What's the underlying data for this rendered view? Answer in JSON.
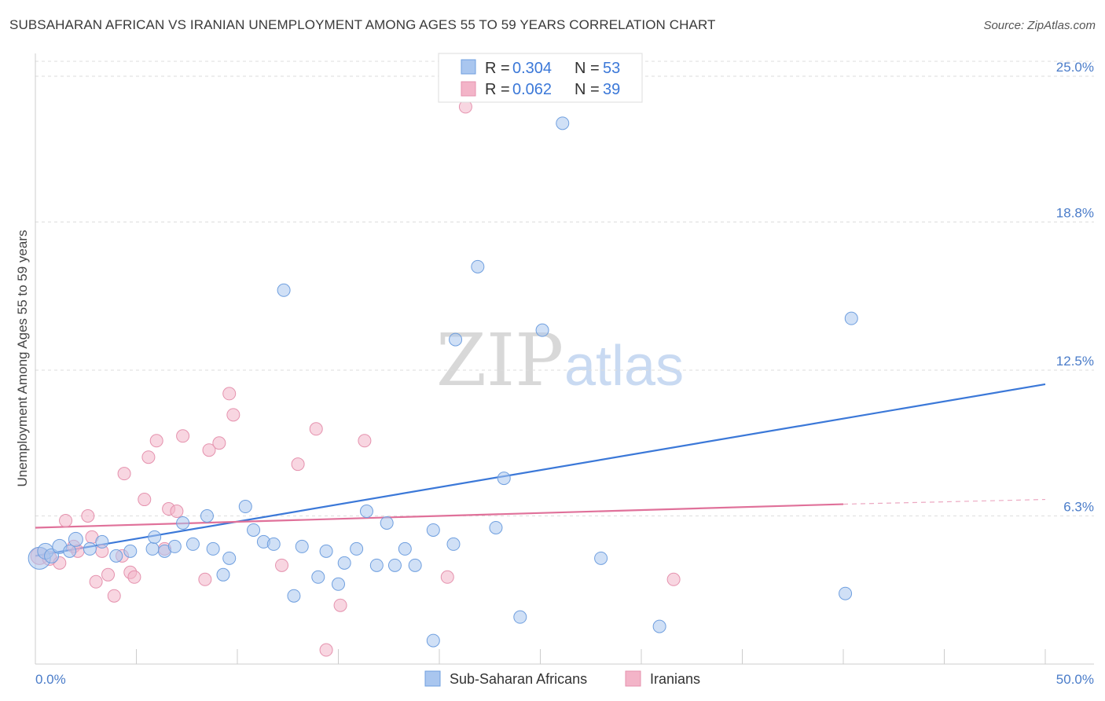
{
  "header": {
    "title": "SUBSAHARAN AFRICAN VS IRANIAN UNEMPLOYMENT AMONG AGES 55 TO 59 YEARS CORRELATION CHART",
    "source": "Source: ZipAtlas.com"
  },
  "watermark": {
    "zip": "ZIP",
    "atlas": "atlas"
  },
  "legend": {
    "blue": {
      "r_label": "R = ",
      "r_value": "0.304",
      "n_label": "N = ",
      "n_value": "53"
    },
    "pink": {
      "r_label": "R = ",
      "r_value": "0.062",
      "n_label": "N = ",
      "n_value": "39"
    }
  },
  "bottom_legend": {
    "blue": "Sub-Saharan Africans",
    "pink": "Iranians"
  },
  "colors": {
    "blue": "#3b78d8",
    "blue_fill": "#a9c6ef",
    "pink": "#e0719a",
    "pink_fill": "#f3b4c8",
    "grid": "#dddddd",
    "tick_label": "#4a7cc9"
  },
  "chart_data": {
    "type": "scatter",
    "title": "SUBSAHARAN AFRICAN VS IRANIAN UNEMPLOYMENT AMONG AGES 55 TO 59 YEARS CORRELATION CHART",
    "xlabel": "",
    "ylabel": "Unemployment Among Ages 55 to 59 years",
    "xlim": [
      0,
      50
    ],
    "ylim": [
      0,
      25
    ],
    "x_tick_labels": [
      "0.0%",
      "50.0%"
    ],
    "y_ticks": [
      6.3,
      12.5,
      18.8,
      25.0
    ],
    "y_tick_labels": [
      "6.3%",
      "12.5%",
      "18.8%",
      "25.0%"
    ],
    "series": [
      {
        "name": "Sub-Saharan Africans",
        "r": 0.304,
        "n": 53,
        "trend": {
          "x": [
            0,
            50
          ],
          "y": [
            4.6,
            11.9
          ]
        },
        "points": [
          [
            0.2,
            4.5,
            14
          ],
          [
            0.5,
            4.8,
            10
          ],
          [
            0.8,
            4.6,
            9
          ],
          [
            1.2,
            5.0,
            9
          ],
          [
            1.7,
            4.8,
            8
          ],
          [
            2.0,
            5.3,
            9
          ],
          [
            2.7,
            4.9,
            8
          ],
          [
            3.3,
            5.2,
            8
          ],
          [
            4.0,
            4.6,
            8
          ],
          [
            4.7,
            4.8,
            8
          ],
          [
            5.8,
            4.9,
            8
          ],
          [
            5.9,
            5.4,
            8
          ],
          [
            6.4,
            4.8,
            8
          ],
          [
            6.9,
            5.0,
            8
          ],
          [
            7.3,
            6.0,
            8
          ],
          [
            7.8,
            5.1,
            8
          ],
          [
            8.5,
            6.3,
            8
          ],
          [
            8.8,
            4.9,
            8
          ],
          [
            9.3,
            3.8,
            8
          ],
          [
            9.6,
            4.5,
            8
          ],
          [
            10.4,
            6.7,
            8
          ],
          [
            10.8,
            5.7,
            8
          ],
          [
            11.3,
            5.2,
            8
          ],
          [
            11.8,
            5.1,
            8
          ],
          [
            12.3,
            15.9,
            8
          ],
          [
            12.8,
            2.9,
            8
          ],
          [
            13.2,
            5.0,
            8
          ],
          [
            14.0,
            3.7,
            8
          ],
          [
            14.4,
            4.8,
            8
          ],
          [
            15.0,
            3.4,
            8
          ],
          [
            15.3,
            4.3,
            8
          ],
          [
            15.9,
            4.9,
            8
          ],
          [
            16.4,
            6.5,
            8
          ],
          [
            16.9,
            4.2,
            8
          ],
          [
            17.4,
            6.0,
            8
          ],
          [
            17.8,
            4.2,
            8
          ],
          [
            18.3,
            4.9,
            8
          ],
          [
            18.8,
            4.2,
            8
          ],
          [
            19.7,
            5.7,
            8
          ],
          [
            19.7,
            1.0,
            8
          ],
          [
            20.7,
            5.1,
            8
          ],
          [
            20.8,
            13.8,
            8
          ],
          [
            21.9,
            16.9,
            8
          ],
          [
            22.8,
            5.8,
            8
          ],
          [
            23.2,
            7.9,
            8
          ],
          [
            24.0,
            2.0,
            8
          ],
          [
            25.1,
            14.2,
            8
          ],
          [
            26.1,
            23.0,
            8
          ],
          [
            28.0,
            4.5,
            8
          ],
          [
            30.9,
            1.6,
            8
          ],
          [
            40.1,
            3.0,
            8
          ],
          [
            40.4,
            14.7,
            8
          ]
        ]
      },
      {
        "name": "Iranians",
        "r": 0.062,
        "n": 39,
        "trend": {
          "x": [
            0,
            40
          ],
          "y": [
            5.8,
            6.8
          ]
        },
        "trend_dashed": {
          "x": [
            40,
            50
          ],
          "y": [
            6.8,
            7.0
          ]
        },
        "points": [
          [
            0.2,
            4.6,
            11
          ],
          [
            0.7,
            4.5,
            9
          ],
          [
            1.2,
            4.3,
            8
          ],
          [
            1.5,
            6.1,
            8
          ],
          [
            1.9,
            5.0,
            8
          ],
          [
            2.1,
            4.8,
            8
          ],
          [
            2.6,
            6.3,
            8
          ],
          [
            2.8,
            5.4,
            8
          ],
          [
            3.0,
            3.5,
            8
          ],
          [
            3.3,
            4.8,
            8
          ],
          [
            3.6,
            3.8,
            8
          ],
          [
            3.9,
            2.9,
            8
          ],
          [
            4.3,
            4.6,
            8
          ],
          [
            4.4,
            8.1,
            8
          ],
          [
            4.7,
            3.9,
            8
          ],
          [
            4.9,
            3.7,
            8
          ],
          [
            5.4,
            7.0,
            8
          ],
          [
            5.6,
            8.8,
            8
          ],
          [
            6.0,
            9.5,
            8
          ],
          [
            6.4,
            4.9,
            8
          ],
          [
            6.6,
            6.6,
            8
          ],
          [
            7.0,
            6.5,
            8
          ],
          [
            7.3,
            9.7,
            8
          ],
          [
            8.4,
            3.6,
            8
          ],
          [
            8.6,
            9.1,
            8
          ],
          [
            9.1,
            9.4,
            8
          ],
          [
            9.6,
            11.5,
            8
          ],
          [
            9.8,
            10.6,
            8
          ],
          [
            12.2,
            4.2,
            8
          ],
          [
            13.0,
            8.5,
            8
          ],
          [
            13.9,
            10.0,
            8
          ],
          [
            14.4,
            0.6,
            8
          ],
          [
            15.1,
            2.5,
            8
          ],
          [
            16.3,
            9.5,
            8
          ],
          [
            20.4,
            3.7,
            8
          ],
          [
            21.3,
            23.7,
            8
          ],
          [
            31.6,
            3.6,
            8
          ]
        ]
      }
    ]
  }
}
